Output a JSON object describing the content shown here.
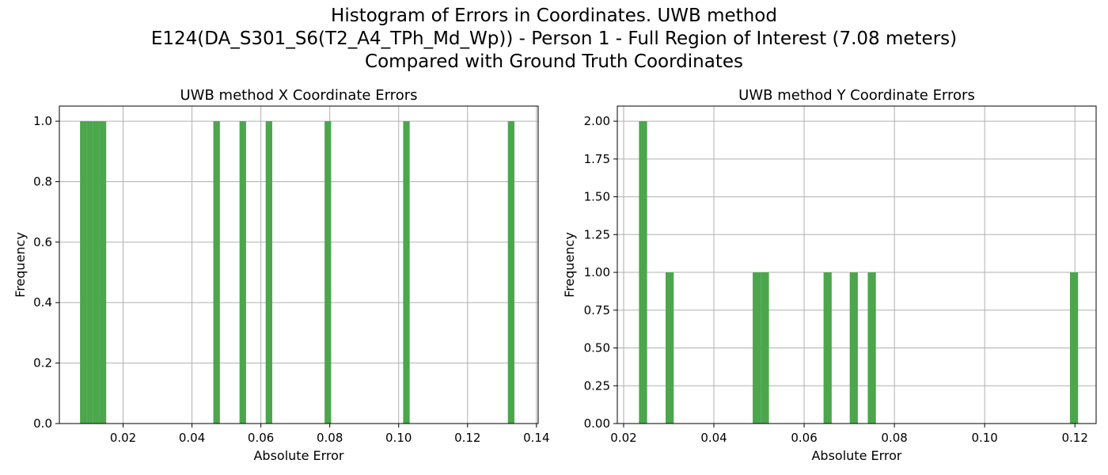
{
  "suptitle": {
    "line1": "Histogram of Errors in Coordinates. UWB method",
    "line2": "E124(DA_S301_S6(T2_A4_TPh_Md_Wp)) - Person 1 - Full Region of Interest (7.08 meters)",
    "line3": "Compared with Ground Truth Coordinates"
  },
  "colors": {
    "bar": "#4ca64c",
    "grid": "#b0b0b0",
    "axis": "#000000"
  },
  "chart_data": [
    {
      "type": "bar",
      "title": "UWB method X Coordinate Errors",
      "xlabel": "Absolute Error",
      "ylabel": "Frequency",
      "xlim": [
        0.0015,
        0.1405
      ],
      "ylim": [
        0,
        1.05
      ],
      "grid": true,
      "xticks": [
        0.02,
        0.04,
        0.06,
        0.08,
        0.1,
        0.12,
        0.14
      ],
      "xtick_labels": [
        "0.02",
        "0.04",
        "0.06",
        "0.08",
        "0.10",
        "0.12",
        "0.14"
      ],
      "yticks": [
        0,
        0.2,
        0.4,
        0.6,
        0.8,
        1.0
      ],
      "ytick_labels": [
        "0.0",
        "0.2",
        "0.4",
        "0.6",
        "0.8",
        "1.0"
      ],
      "bars": [
        {
          "x0": 0.0075,
          "x1": 0.0094,
          "value": 1
        },
        {
          "x0": 0.0094,
          "x1": 0.0113,
          "value": 1
        },
        {
          "x0": 0.0113,
          "x1": 0.0132,
          "value": 1
        },
        {
          "x0": 0.0132,
          "x1": 0.0151,
          "value": 1
        },
        {
          "x0": 0.0462,
          "x1": 0.0481,
          "value": 1
        },
        {
          "x0": 0.0538,
          "x1": 0.0557,
          "value": 1
        },
        {
          "x0": 0.0614,
          "x1": 0.0633,
          "value": 1
        },
        {
          "x0": 0.0785,
          "x1": 0.0804,
          "value": 1
        },
        {
          "x0": 0.1013,
          "x1": 0.1032,
          "value": 1
        },
        {
          "x0": 0.1317,
          "x1": 0.1336,
          "value": 1
        }
      ]
    },
    {
      "type": "bar",
      "title": "UWB method Y Coordinate Errors",
      "xlabel": "Absolute Error",
      "ylabel": "Frequency",
      "xlim": [
        0.0186,
        0.1247
      ],
      "ylim": [
        0,
        2.1
      ],
      "grid": true,
      "xticks": [
        0.02,
        0.04,
        0.06,
        0.08,
        0.1,
        0.12
      ],
      "xtick_labels": [
        "0.02",
        "0.04",
        "0.06",
        "0.08",
        "0.10",
        "0.12"
      ],
      "yticks": [
        0,
        0.25,
        0.5,
        0.75,
        1.0,
        1.25,
        1.5,
        1.75,
        2.0
      ],
      "ytick_labels": [
        "0.00",
        "0.25",
        "0.50",
        "0.75",
        "1.00",
        "1.25",
        "1.50",
        "1.75",
        "2.00"
      ],
      "bars": [
        {
          "x0": 0.0234,
          "x1": 0.0252,
          "value": 2
        },
        {
          "x0": 0.0293,
          "x1": 0.0311,
          "value": 1
        },
        {
          "x0": 0.0486,
          "x1": 0.0504,
          "value": 1
        },
        {
          "x0": 0.0504,
          "x1": 0.0522,
          "value": 1
        },
        {
          "x0": 0.0643,
          "x1": 0.0661,
          "value": 1
        },
        {
          "x0": 0.0701,
          "x1": 0.0719,
          "value": 1
        },
        {
          "x0": 0.0741,
          "x1": 0.0759,
          "value": 1
        },
        {
          "x0": 0.1189,
          "x1": 0.1207,
          "value": 1
        }
      ]
    }
  ]
}
